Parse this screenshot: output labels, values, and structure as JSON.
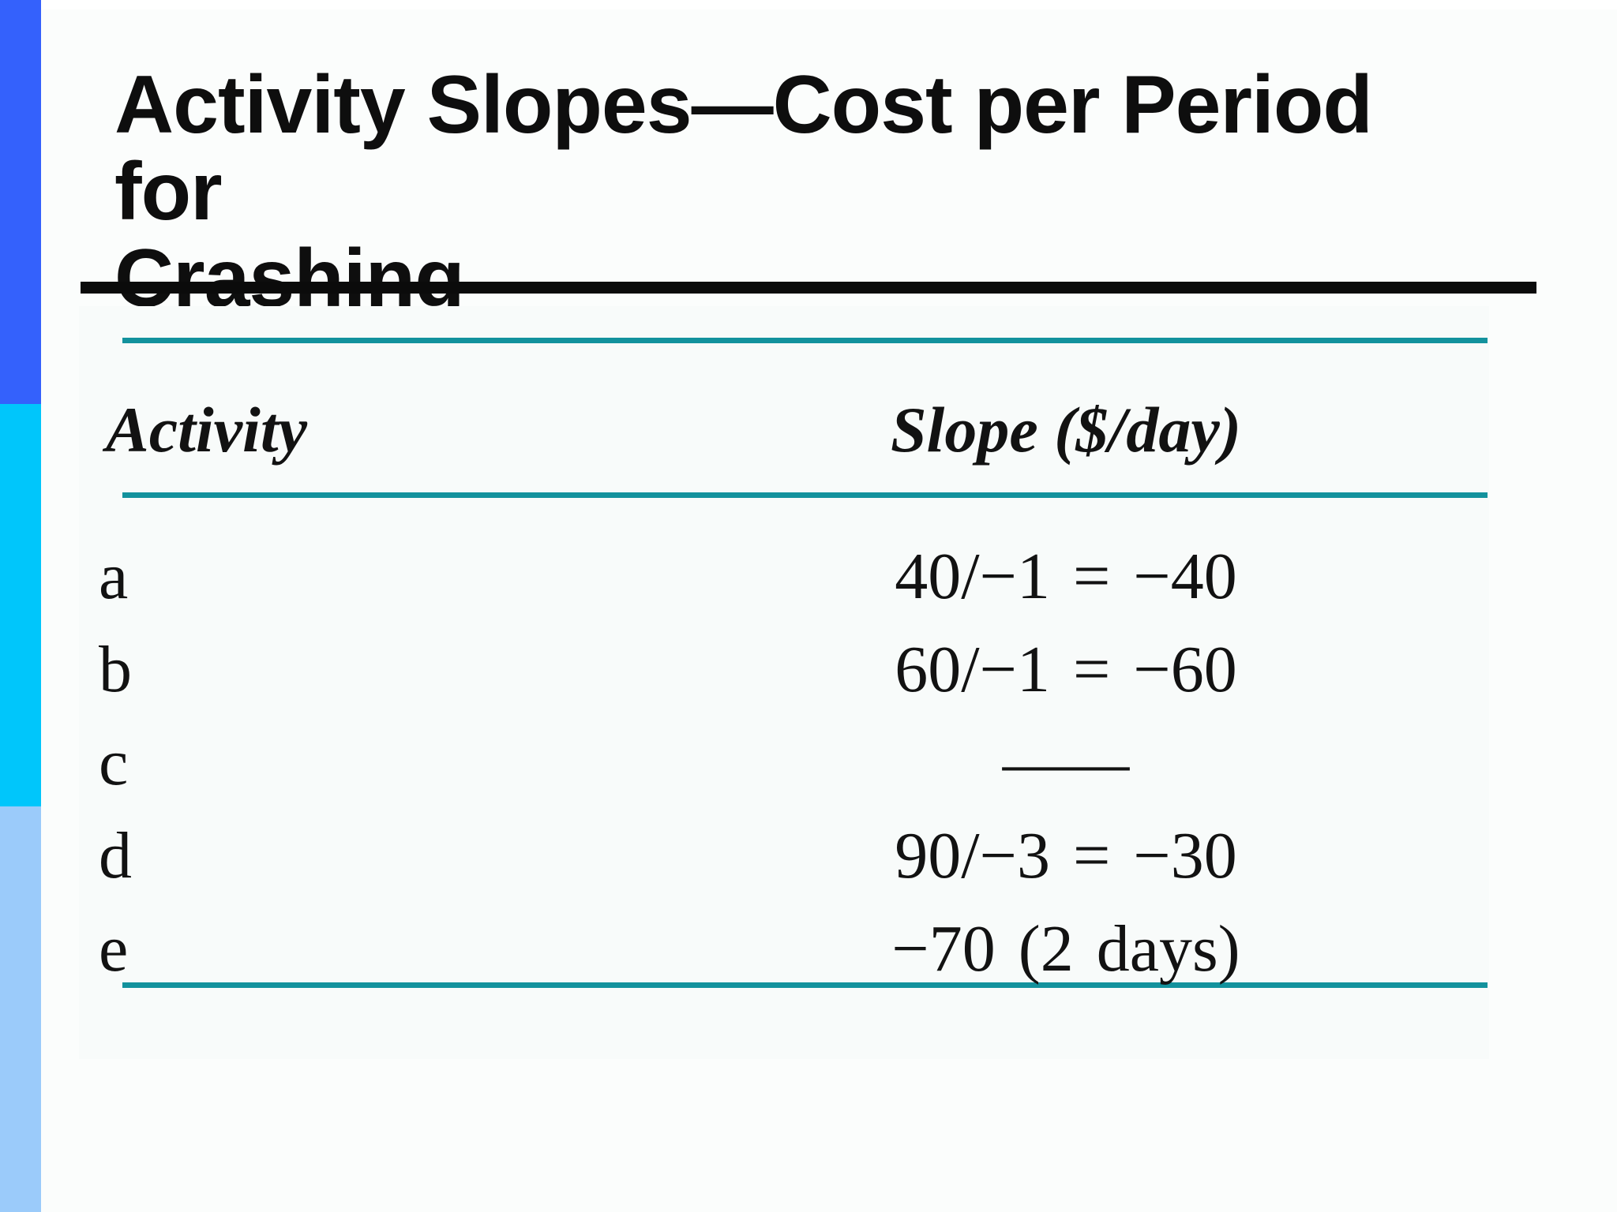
{
  "slide": {
    "title_line1": "Activity Slopes—Cost per Period for",
    "title_line2": "Crashing"
  },
  "table": {
    "headers": {
      "activity": "Activity",
      "slope": "Slope ($/day)"
    },
    "rows": [
      {
        "activity": "a",
        "slope": "40/−1 = −40"
      },
      {
        "activity": "b",
        "slope": "60/−1 = −60"
      },
      {
        "activity": "c",
        "slope": "—"
      },
      {
        "activity": "d",
        "slope": "90/−3 = −30"
      },
      {
        "activity": "e",
        "slope": "−70 (2 days)"
      }
    ]
  },
  "colors": {
    "sidebar_blue": "#3461FC",
    "sidebar_cyan": "#00C6FB",
    "sidebar_light_blue": "#9BCBFA",
    "rule_black": "#0B0B0B",
    "rule_teal": "#13929D",
    "text": "#0E0E0E"
  }
}
